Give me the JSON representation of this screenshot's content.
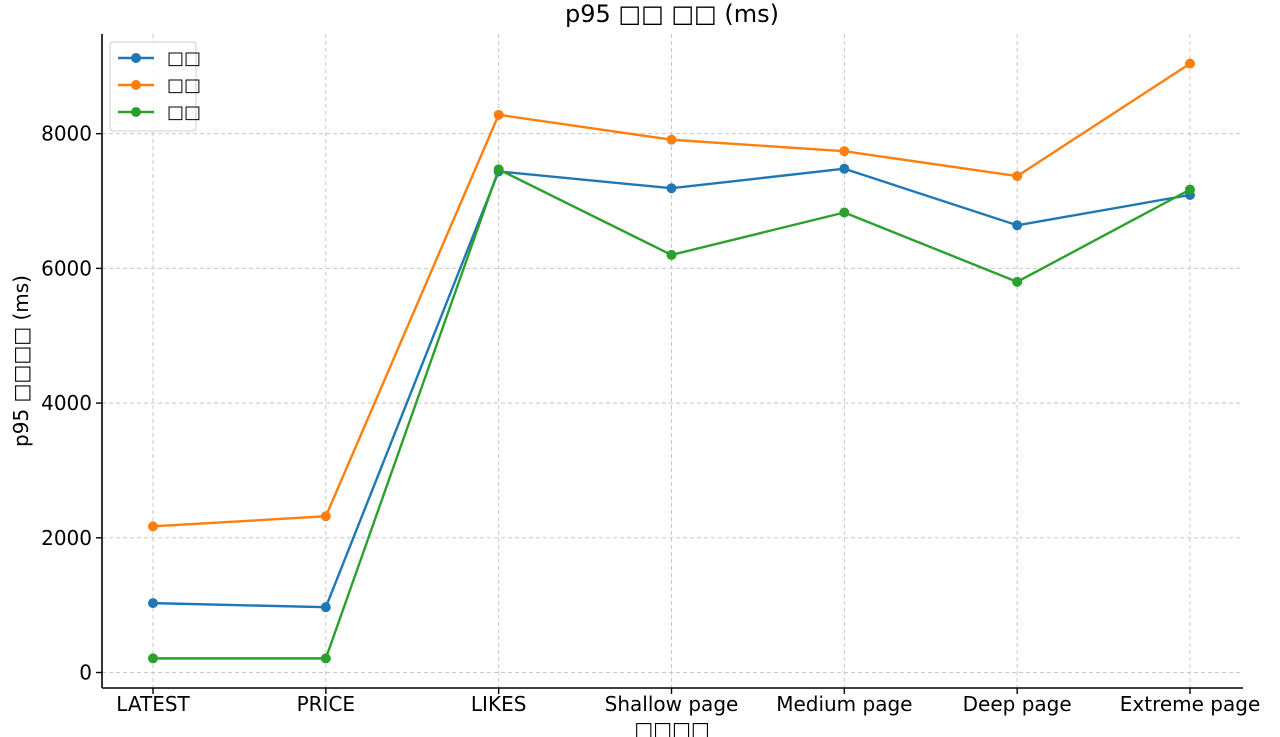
{
  "chart_data": {
    "type": "line",
    "title": "p95 □□ □□ (ms)",
    "xlabel": "□□□□",
    "ylabel": "p95 □□□□ (ms)",
    "categories": [
      "LATEST",
      "PRICE",
      "LIKES",
      "Shallow page",
      "Medium page",
      "Deep page",
      "Extreme page"
    ],
    "ylim": [
      -230,
      9480
    ],
    "yticks": [
      0,
      2000,
      4000,
      6000,
      8000
    ],
    "ytick_labels": [
      "0",
      "2000",
      "4000",
      "6000",
      "8000"
    ],
    "grid": true,
    "legend_position": "top-left",
    "series": [
      {
        "name": "□□",
        "color": "#1f77b4",
        "values": [
          1030,
          970,
          7440,
          7190,
          7480,
          6640,
          7090
        ]
      },
      {
        "name": "□□",
        "color": "#ff7f0e",
        "values": [
          2170,
          2320,
          8280,
          7910,
          7740,
          7370,
          9040
        ]
      },
      {
        "name": "□□",
        "color": "#2ca02c",
        "values": [
          210,
          210,
          7470,
          6200,
          6830,
          5800,
          7170
        ]
      }
    ]
  }
}
